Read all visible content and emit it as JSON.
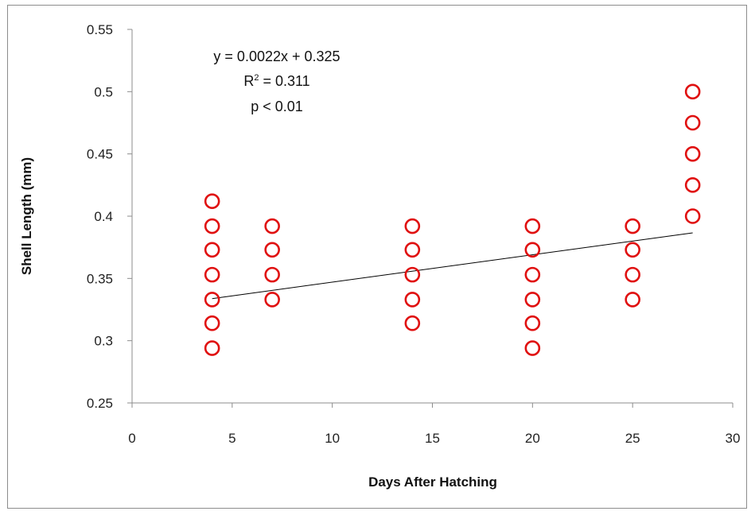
{
  "chart_data": {
    "type": "scatter",
    "xlabel": "Days After Hatching",
    "ylabel": "Shell Length (mm)",
    "xlim": [
      0,
      30
    ],
    "ylim": [
      0.25,
      0.55
    ],
    "xticks": [
      "0",
      "5",
      "10",
      "15",
      "20",
      "25",
      "30"
    ],
    "yticks": [
      "0.25",
      "0.3",
      "0.35",
      "0.4",
      "0.45",
      "0.5",
      "0.55"
    ],
    "xtick_values": [
      0,
      5,
      10,
      15,
      20,
      25,
      30
    ],
    "ytick_values": [
      0.25,
      0.3,
      0.35,
      0.4,
      0.45,
      0.5,
      0.55
    ],
    "grid": false,
    "legend": "none",
    "marker_color": "#e01010",
    "trendline_color": "#000000",
    "points": [
      {
        "x": 4,
        "y": 0.294
      },
      {
        "x": 4,
        "y": 0.314
      },
      {
        "x": 4,
        "y": 0.333
      },
      {
        "x": 4,
        "y": 0.353
      },
      {
        "x": 4,
        "y": 0.373
      },
      {
        "x": 4,
        "y": 0.392
      },
      {
        "x": 4,
        "y": 0.412
      },
      {
        "x": 7,
        "y": 0.333
      },
      {
        "x": 7,
        "y": 0.353
      },
      {
        "x": 7,
        "y": 0.373
      },
      {
        "x": 7,
        "y": 0.392
      },
      {
        "x": 14,
        "y": 0.314
      },
      {
        "x": 14,
        "y": 0.333
      },
      {
        "x": 14,
        "y": 0.353
      },
      {
        "x": 14,
        "y": 0.373
      },
      {
        "x": 14,
        "y": 0.392
      },
      {
        "x": 20,
        "y": 0.294
      },
      {
        "x": 20,
        "y": 0.314
      },
      {
        "x": 20,
        "y": 0.333
      },
      {
        "x": 20,
        "y": 0.353
      },
      {
        "x": 20,
        "y": 0.373
      },
      {
        "x": 20,
        "y": 0.392
      },
      {
        "x": 25,
        "y": 0.333
      },
      {
        "x": 25,
        "y": 0.353
      },
      {
        "x": 25,
        "y": 0.373
      },
      {
        "x": 25,
        "y": 0.392
      },
      {
        "x": 28,
        "y": 0.4
      },
      {
        "x": 28,
        "y": 0.425
      },
      {
        "x": 28,
        "y": 0.45
      },
      {
        "x": 28,
        "y": 0.475
      },
      {
        "x": 28,
        "y": 0.5
      }
    ],
    "trendline": {
      "slope": 0.0022,
      "intercept": 0.325,
      "x_range": [
        4,
        28
      ]
    },
    "annotations": {
      "equation": "y = 0.0022x + 0.325",
      "r2_prefix": "R",
      "r2_sup": "2",
      "r2_suffix": " = 0.311",
      "p_value": "p < 0.01"
    }
  }
}
